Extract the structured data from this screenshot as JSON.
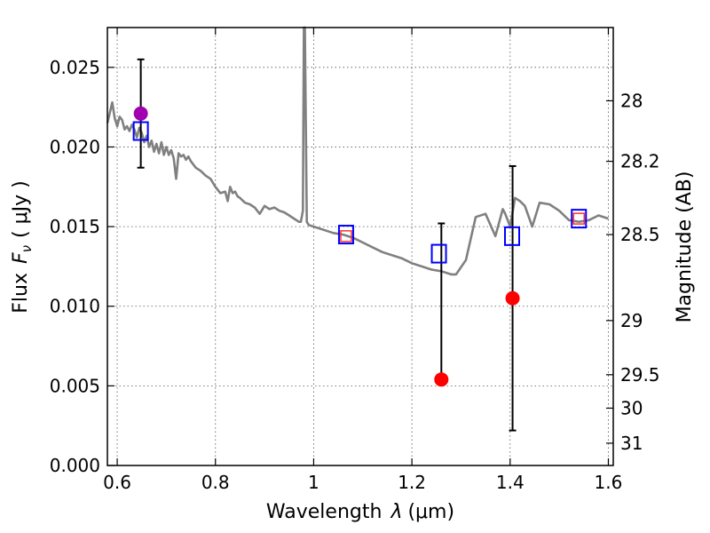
{
  "chart_data": {
    "type": "scatter",
    "xlabel_text": "Wavelength",
    "xlabel_symbol": "λ",
    "xlabel_unit": "(μm)",
    "ylabel_text": "Flux",
    "ylabel_symbol": "F",
    "ylabel_subscript": "ν",
    "ylabel_unit": "( μJy )",
    "y2label": "Magnitude (AB)",
    "xlim": [
      0.58,
      1.61
    ],
    "ylim": [
      0.0,
      0.0275
    ],
    "grid": true,
    "x_ticks": [
      {
        "value": 0.6,
        "label": "0.6"
      },
      {
        "value": 0.8,
        "label": "0.8"
      },
      {
        "value": 1.0,
        "label": "1"
      },
      {
        "value": 1.2,
        "label": "1.2"
      },
      {
        "value": 1.4,
        "label": "1.4"
      },
      {
        "value": 1.6,
        "label": "1.6"
      }
    ],
    "y_ticks": [
      {
        "value": 0.0,
        "label": "0.000"
      },
      {
        "value": 0.005,
        "label": "0.005"
      },
      {
        "value": 0.01,
        "label": "0.010"
      },
      {
        "value": 0.015,
        "label": "0.015"
      },
      {
        "value": 0.02,
        "label": "0.020"
      },
      {
        "value": 0.025,
        "label": "0.025"
      }
    ],
    "y2_ticks": [
      {
        "flux": 0.0229,
        "label": "28"
      },
      {
        "flux": 0.0191,
        "label": "28.2"
      },
      {
        "flux": 0.0145,
        "label": "28.5"
      },
      {
        "flux": 0.0091,
        "label": "29"
      },
      {
        "flux": 0.0057,
        "label": "29.5"
      },
      {
        "flux": 0.0036,
        "label": "30"
      },
      {
        "flux": 0.0014,
        "label": "31"
      }
    ],
    "spectrum": {
      "color": "#808080",
      "x": [
        0.58,
        0.59,
        0.595,
        0.6,
        0.605,
        0.61,
        0.615,
        0.62,
        0.625,
        0.63,
        0.635,
        0.64,
        0.645,
        0.65,
        0.655,
        0.66,
        0.665,
        0.67,
        0.675,
        0.68,
        0.685,
        0.69,
        0.695,
        0.7,
        0.705,
        0.71,
        0.715,
        0.72,
        0.725,
        0.73,
        0.735,
        0.74,
        0.745,
        0.75,
        0.76,
        0.77,
        0.78,
        0.79,
        0.8,
        0.81,
        0.82,
        0.825,
        0.83,
        0.835,
        0.84,
        0.845,
        0.85,
        0.86,
        0.87,
        0.88,
        0.89,
        0.9,
        0.91,
        0.92,
        0.93,
        0.94,
        0.95,
        0.96,
        0.97,
        0.974,
        0.978,
        0.98,
        0.982,
        0.986,
        0.99,
        1.0,
        1.02,
        1.04,
        1.06,
        1.08,
        1.1,
        1.12,
        1.14,
        1.16,
        1.18,
        1.2,
        1.22,
        1.24,
        1.26,
        1.28,
        1.29,
        1.31,
        1.33,
        1.35,
        1.37,
        1.385,
        1.39,
        1.4,
        1.41,
        1.42,
        1.43,
        1.445,
        1.46,
        1.48,
        1.5,
        1.52,
        1.54,
        1.56,
        1.58,
        1.6
      ],
      "y": [
        0.0215,
        0.0228,
        0.0218,
        0.0213,
        0.0219,
        0.0217,
        0.0211,
        0.0213,
        0.021,
        0.0214,
        0.0211,
        0.0206,
        0.0212,
        0.0209,
        0.0203,
        0.0207,
        0.02,
        0.0204,
        0.0197,
        0.0202,
        0.0196,
        0.0203,
        0.0195,
        0.02,
        0.0195,
        0.0198,
        0.0193,
        0.018,
        0.0196,
        0.0194,
        0.0195,
        0.0192,
        0.0194,
        0.0191,
        0.0187,
        0.0185,
        0.0182,
        0.018,
        0.0175,
        0.0171,
        0.0172,
        0.0166,
        0.0175,
        0.0171,
        0.0172,
        0.0169,
        0.0168,
        0.0165,
        0.0164,
        0.0162,
        0.0158,
        0.0163,
        0.0161,
        0.0162,
        0.016,
        0.0159,
        0.0157,
        0.0155,
        0.0153,
        0.0153,
        0.016,
        0.0275,
        0.0275,
        0.0153,
        0.0151,
        0.015,
        0.0148,
        0.0146,
        0.0145,
        0.0143,
        0.014,
        0.0137,
        0.0134,
        0.0132,
        0.013,
        0.0127,
        0.0125,
        0.0123,
        0.0122,
        0.012,
        0.012,
        0.0129,
        0.0156,
        0.0158,
        0.0144,
        0.0161,
        0.0158,
        0.015,
        0.0168,
        0.0166,
        0.0163,
        0.015,
        0.0165,
        0.0164,
        0.016,
        0.0154,
        0.0153,
        0.0154,
        0.0157,
        0.0155
      ]
    },
    "model_points": {
      "color": "#0000ff",
      "x": [
        0.648,
        1.066,
        1.255,
        1.404,
        1.54
      ],
      "y": [
        0.021,
        0.0145,
        0.0133,
        0.0144,
        0.0155
      ]
    },
    "observed_small_squares": {
      "color": "#ff3030",
      "x": [
        1.066,
        1.54
      ],
      "y": [
        0.0144,
        0.0155
      ]
    },
    "detections": {
      "color": "#ff0000",
      "points": [
        {
          "x": 1.26,
          "y": 0.0054,
          "yerr_low": 0.0054,
          "yerr_high": 0.0152
        },
        {
          "x": 1.405,
          "y": 0.0105,
          "yerr_low": 0.0022,
          "yerr_high": 0.0188
        }
      ]
    },
    "special_point": {
      "color": "#a000b0",
      "x": 0.648,
      "y": 0.0221,
      "yerr_low": 0.0187,
      "yerr_high": 0.0255
    }
  }
}
